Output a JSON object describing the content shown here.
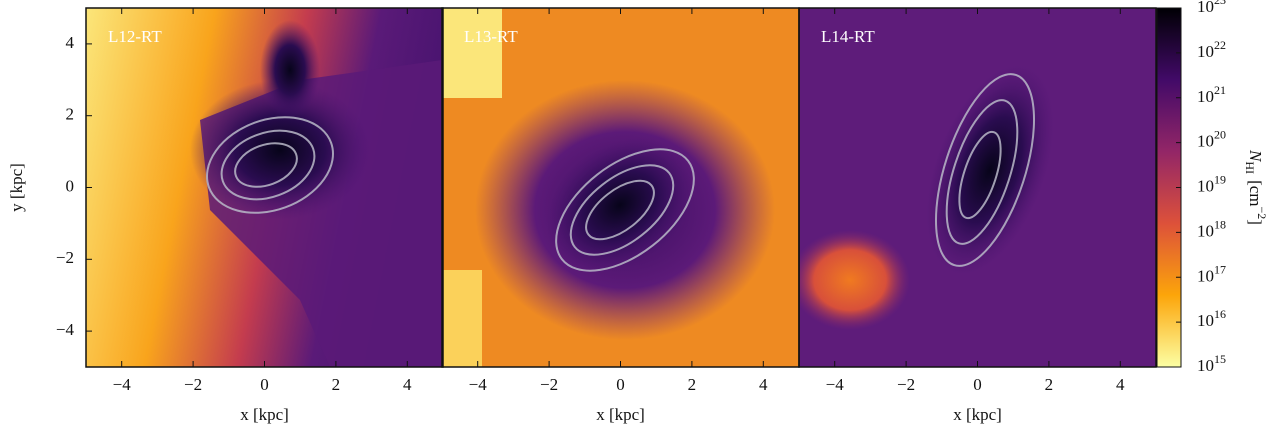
{
  "chart_data": [
    {
      "type": "image",
      "label": "L12-RT",
      "xlabel": "x [kpc]",
      "ylabel": "y [kpc]",
      "xlim": [
        -5,
        5
      ],
      "ylim": [
        -5,
        5
      ],
      "xticks": [
        {
          "value": -4,
          "label": "−4"
        },
        {
          "value": -2,
          "label": "−2"
        },
        0,
        2,
        4
      ],
      "yticks": [
        {
          "value": -4,
          "label": "−4"
        },
        {
          "value": -2,
          "label": "−2"
        },
        0,
        2,
        4
      ]
    },
    {
      "type": "image",
      "label": "L13-RT",
      "xlabel": "x [kpc]",
      "xlim": [
        -5,
        5
      ],
      "ylim": [
        -5,
        5
      ],
      "xticks": [
        {
          "value": -4,
          "label": "−4"
        },
        {
          "value": -2,
          "label": "−2"
        },
        0,
        2,
        4
      ]
    },
    {
      "type": "image",
      "label": "L14-RT",
      "xlabel": "x [kpc]",
      "xlim": [
        -5,
        5
      ],
      "ylim": [
        -5,
        5
      ],
      "xticks": [
        {
          "value": -4,
          "label": "−4"
        },
        {
          "value": -2,
          "label": "−2"
        },
        0,
        2,
        4
      ]
    }
  ],
  "colorbar": {
    "lim": [
      15,
      23
    ],
    "label": {
      "symbol": "N",
      "subscript": "HI",
      "unit": "[cm",
      "exponent": "−2",
      "close": "]"
    },
    "ticks": [
      {
        "value": 15,
        "label": [
          "10",
          "15"
        ]
      },
      {
        "value": 16,
        "label": [
          "10",
          "16"
        ]
      },
      {
        "value": 17,
        "label": [
          "10",
          "17"
        ]
      },
      {
        "value": 18,
        "label": [
          "10",
          "18"
        ]
      },
      {
        "value": 19,
        "label": [
          "10",
          "19"
        ]
      },
      {
        "value": 20,
        "label": [
          "10",
          "20"
        ]
      },
      {
        "value": 21,
        "label": [
          "10",
          "21"
        ]
      },
      {
        "value": 22,
        "label": [
          "10",
          "22"
        ]
      },
      {
        "value": 23,
        "label": [
          "10",
          "23"
        ]
      }
    ]
  }
}
